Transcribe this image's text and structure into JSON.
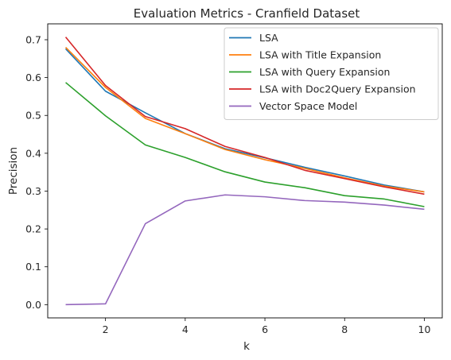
{
  "chart_data": {
    "type": "line",
    "title": "Evaluation Metrics - Cranfield Dataset",
    "xlabel": "k",
    "ylabel": "Precision",
    "xlim": [
      0.55,
      10.45
    ],
    "ylim": [
      -0.035,
      0.742
    ],
    "xticks": [
      2,
      4,
      6,
      8,
      10
    ],
    "yticks": [
      0.0,
      0.1,
      0.2,
      0.3,
      0.4,
      0.5,
      0.6,
      0.7
    ],
    "grid": false,
    "legend_position": "top-right",
    "x": [
      1,
      2,
      3,
      4,
      5,
      6,
      7,
      8,
      9,
      10
    ],
    "series": [
      {
        "name": "LSA",
        "color": "#1f77b4",
        "values": [
          0.676,
          0.564,
          0.507,
          0.452,
          0.412,
          0.388,
          0.363,
          0.34,
          0.316,
          0.298
        ]
      },
      {
        "name": "LSA with Title Expansion",
        "color": "#ff7f0e",
        "values": [
          0.68,
          0.574,
          0.492,
          0.452,
          0.41,
          0.383,
          0.36,
          0.335,
          0.313,
          0.298
        ]
      },
      {
        "name": "LSA with Query Expansion",
        "color": "#2ca02c",
        "values": [
          0.587,
          0.499,
          0.422,
          0.389,
          0.351,
          0.324,
          0.309,
          0.288,
          0.279,
          0.259
        ]
      },
      {
        "name": "LSA with Doc2Query Expansion",
        "color": "#d62728",
        "values": [
          0.707,
          0.579,
          0.497,
          0.465,
          0.418,
          0.389,
          0.355,
          0.333,
          0.311,
          0.292
        ]
      },
      {
        "name": "Vector Space Model",
        "color": "#9467bd",
        "values": [
          0.0,
          0.002,
          0.214,
          0.274,
          0.29,
          0.285,
          0.275,
          0.271,
          0.263,
          0.252
        ]
      }
    ]
  }
}
